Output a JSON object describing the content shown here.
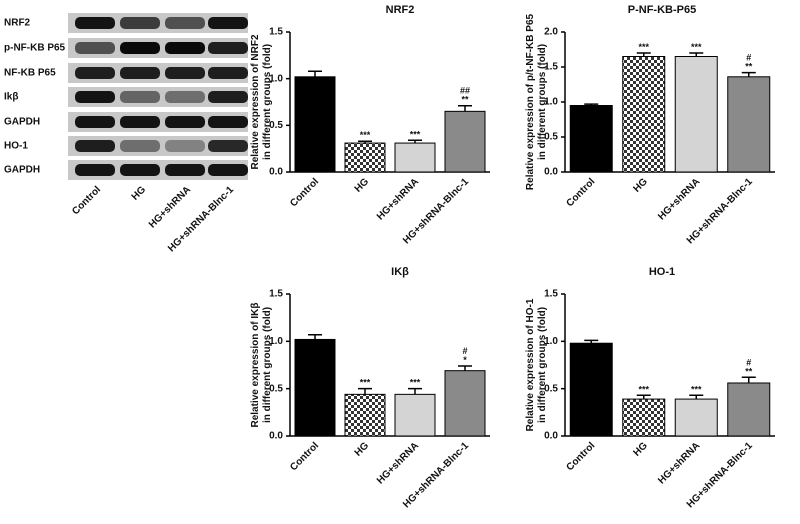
{
  "blot": {
    "rows": [
      "NRF2",
      "p-NF-KB P65",
      "NF-KB P65",
      "Ikβ",
      "GAPDH",
      "HO-1",
      "GAPDH"
    ],
    "lanes": [
      "Control",
      "HG",
      "HG+shRNA",
      "HG+shRNA-Blnc-1"
    ]
  },
  "chart_data": [
    {
      "type": "bar",
      "title": "NRF2",
      "y_label": [
        "Relative expression of NRF2",
        "in different groups (fold)"
      ],
      "categories": [
        "Control",
        "HG",
        "HG+shRNA",
        "HG+shRNA-Blnc-1"
      ],
      "values": [
        1.02,
        0.31,
        0.31,
        0.65
      ],
      "errors": [
        0.06,
        0.02,
        0.03,
        0.06
      ],
      "fills": [
        "#000000",
        "checker",
        "#d4d4d4",
        "#8a8a8a"
      ],
      "annotations": [
        [],
        [
          "***"
        ],
        [
          "***"
        ],
        [
          "##",
          "**"
        ]
      ],
      "ylim": [
        0,
        1.5
      ],
      "yticks": [
        {
          "value": 0,
          "label": "0.0"
        },
        {
          "value": 0.5,
          "label": "0.5"
        },
        {
          "value": 1,
          "label": "1.0"
        },
        {
          "value": 1.5,
          "label": "1.5"
        }
      ]
    },
    {
      "type": "bar",
      "title": "P-NF-KB-P65",
      "y_label": [
        "Relative expression of p/t-NF-KB P65",
        "in different groups (fold)"
      ],
      "categories": [
        "Control",
        "HG",
        "HG+shRNA",
        "HG+shRNA-Blnc-1"
      ],
      "values": [
        0.95,
        1.65,
        1.65,
        1.36
      ],
      "errors": [
        0.02,
        0.05,
        0.05,
        0.06
      ],
      "fills": [
        "#000000",
        "checker",
        "#d4d4d4",
        "#8a8a8a"
      ],
      "annotations": [
        [],
        [
          "***"
        ],
        [
          "***"
        ],
        [
          "#",
          "**"
        ]
      ],
      "ylim": [
        0,
        2
      ],
      "yticks": [
        {
          "value": 0,
          "label": "0.0"
        },
        {
          "value": 0.5,
          "label": "0.5"
        },
        {
          "value": 1,
          "label": "1.0"
        },
        {
          "value": 1.5,
          "label": "1.5"
        },
        {
          "value": 2,
          "label": "2.0"
        }
      ]
    },
    {
      "type": "bar",
      "title": "IKβ",
      "y_label": [
        "Relative expression of IKβ",
        "in different groups (fold)"
      ],
      "categories": [
        "Control",
        "HG",
        "HG+shRNA",
        "HG+shRNA-Blnc-1"
      ],
      "values": [
        1.02,
        0.44,
        0.44,
        0.69
      ],
      "errors": [
        0.05,
        0.06,
        0.06,
        0.05
      ],
      "fills": [
        "#000000",
        "checker",
        "#d4d4d4",
        "#8a8a8a"
      ],
      "annotations": [
        [],
        [
          "***"
        ],
        [
          "***"
        ],
        [
          "#",
          "*"
        ]
      ],
      "ylim": [
        0,
        1.5
      ],
      "yticks": [
        {
          "value": 0,
          "label": "0.0"
        },
        {
          "value": 0.5,
          "label": "0.5"
        },
        {
          "value": 1,
          "label": "1.0"
        },
        {
          "value": 1.5,
          "label": "1.5"
        }
      ]
    },
    {
      "type": "bar",
      "title": "HO-1",
      "y_label": [
        "Relative expression of HO-1",
        "in different groups (fold)"
      ],
      "categories": [
        "Control",
        "HG",
        "HG+shRNA",
        "HG+shRNA-Blnc-1"
      ],
      "values": [
        0.98,
        0.39,
        0.39,
        0.56
      ],
      "errors": [
        0.03,
        0.04,
        0.04,
        0.06
      ],
      "fills": [
        "#000000",
        "checker",
        "#d4d4d4",
        "#8a8a8a"
      ],
      "annotations": [
        [],
        [
          "***"
        ],
        [
          "***"
        ],
        [
          "#",
          "**"
        ]
      ],
      "ylim": [
        0,
        1.5
      ],
      "yticks": [
        {
          "value": 0,
          "label": "0.0"
        },
        {
          "value": 0.5,
          "label": "0.5"
        },
        {
          "value": 1,
          "label": "1.0"
        },
        {
          "value": 1.5,
          "label": "1.5"
        }
      ]
    }
  ]
}
